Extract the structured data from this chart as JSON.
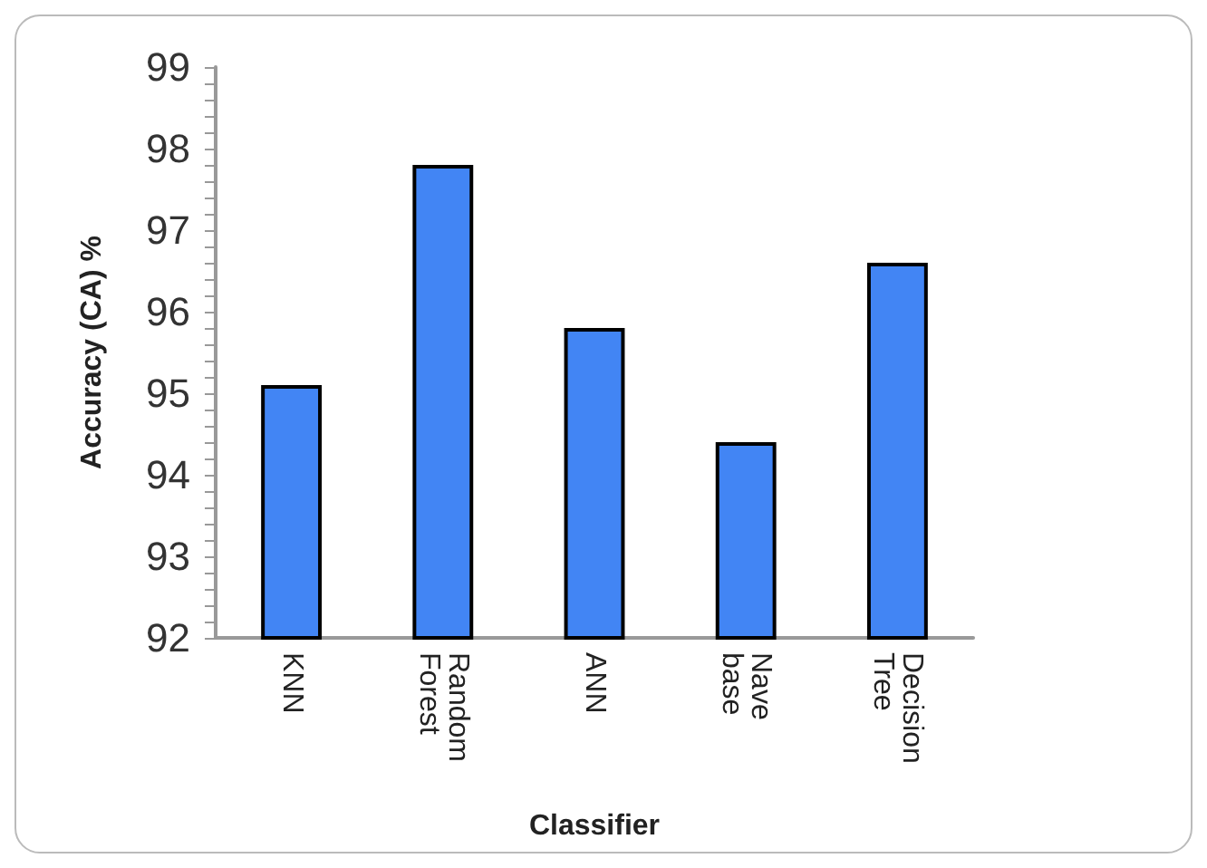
{
  "chart_data": {
    "type": "bar",
    "xlabel": "Classifier",
    "ylabel": "Accuracy (CA) %",
    "categories": [
      "KNN",
      "Random Forest",
      "ANN",
      "Nave base",
      "Decision Tree"
    ],
    "values": [
      95.1,
      97.8,
      95.8,
      94.4,
      96.6
    ],
    "color": "#4285f4",
    "ylim": [
      92,
      99
    ],
    "yticks": [
      92,
      93,
      94,
      95,
      96,
      97,
      98,
      99
    ],
    "grid": false
  }
}
